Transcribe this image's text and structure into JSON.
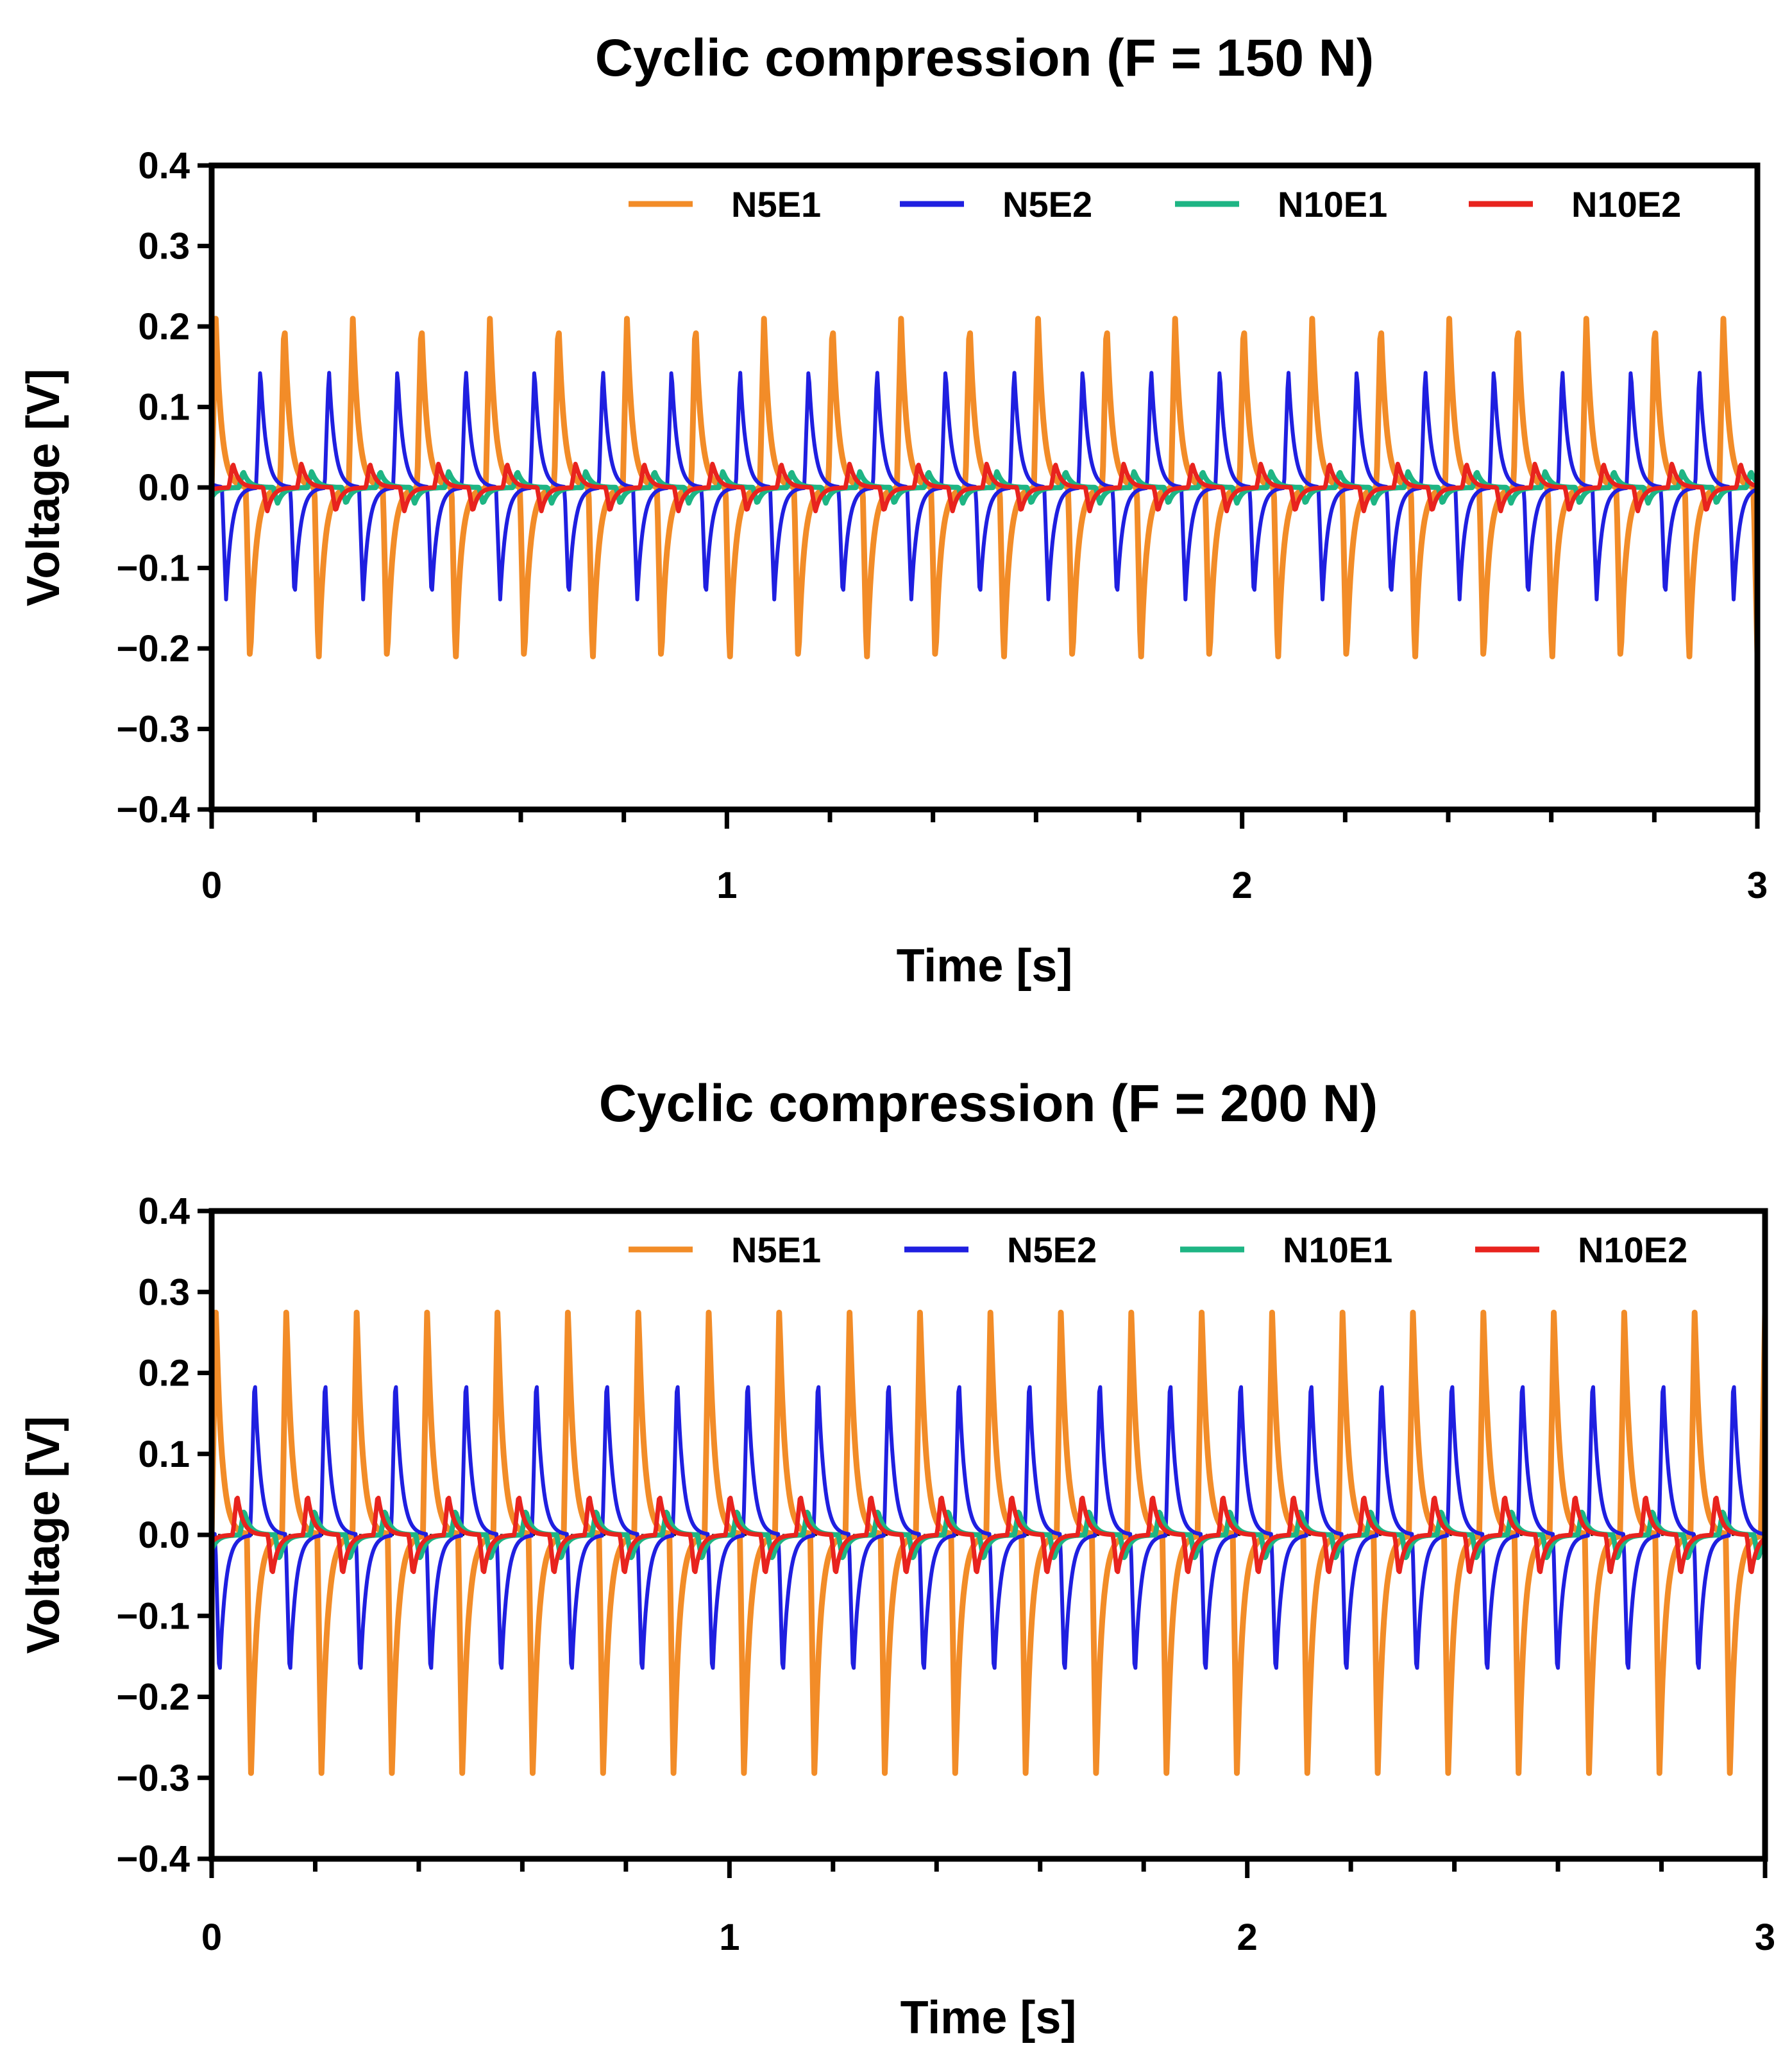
{
  "chart_data": [
    {
      "type": "line",
      "title": "Cyclic compression (F = 150 N)",
      "xlabel": "Time [s]",
      "ylabel": "Voltage [V]",
      "xlim": [
        0,
        3
      ],
      "ylim": [
        -0.4,
        0.4
      ],
      "x_ticks": [
        "0",
        "1",
        "2",
        "3"
      ],
      "y_ticks": [
        "0.4",
        "0.3",
        "0.2",
        "0.1",
        "0.0",
        "−0.1",
        "−0.2",
        "−0.3",
        "−0.4"
      ],
      "legend_position": "top",
      "cycle_period_s": 0.133,
      "series": [
        {
          "name": "N5E1",
          "color": "#F28C28",
          "peak_v": 0.21,
          "trough_v": -0.22,
          "phase": 0.0
        },
        {
          "name": "N5E2",
          "color": "#1F1FE0",
          "peak_v": 0.15,
          "trough_v": -0.14,
          "phase": 0.35
        },
        {
          "name": "N10E1",
          "color": "#1EB584",
          "peak_v": 0.02,
          "trough_v": -0.02,
          "phase": 0.6
        },
        {
          "name": "N10E2",
          "color": "#E8231E",
          "peak_v": 0.03,
          "trough_v": -0.03,
          "phase": 0.75
        }
      ]
    },
    {
      "type": "line",
      "title": "Cyclic compression (F = 200 N)",
      "xlabel": "Time [s]",
      "ylabel": "Voltage [V]",
      "xlim": [
        0,
        3
      ],
      "ylim": [
        -0.4,
        0.4
      ],
      "x_ticks": [
        "0",
        "1",
        "2",
        "3"
      ],
      "y_ticks": [
        "0.4",
        "0.3",
        "0.2",
        "0.1",
        "0.0",
        "−0.1",
        "−0.2",
        "−0.3",
        "−0.4"
      ],
      "legend_position": "top",
      "cycle_period_s": 0.136,
      "series": [
        {
          "name": "N5E1",
          "color": "#F28C28",
          "peak_v": 0.28,
          "trough_v": -0.3,
          "phase": 0.0
        },
        {
          "name": "N5E2",
          "color": "#1F1FE0",
          "peak_v": 0.2,
          "trough_v": -0.18,
          "phase": 0.45
        },
        {
          "name": "N10E1",
          "color": "#1EB584",
          "peak_v": 0.03,
          "trough_v": -0.03,
          "phase": 0.6
        },
        {
          "name": "N10E2",
          "color": "#E8231E",
          "peak_v": 0.05,
          "trough_v": -0.05,
          "phase": 0.7
        }
      ]
    }
  ]
}
